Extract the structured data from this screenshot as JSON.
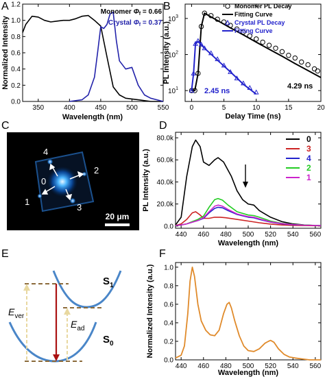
{
  "panels": {
    "A": {
      "letter": "A",
      "ylabel": "Normalized Intensity",
      "xlabel": "Wavelength (nm)",
      "xticks": [
        "350",
        "400",
        "450",
        "500",
        "550"
      ],
      "yticks": [
        "0.0",
        "0.2",
        "0.4",
        "0.6",
        "0.8",
        "1.0",
        "1.2"
      ],
      "legend_monomer_prefix": "Monomer ",
      "legend_monomer_value": " = 0.66",
      "legend_crystal_prefix": "Crystal ",
      "legend_crystal_value": " = 0.37",
      "phi_symbol": "Φ",
      "phi_sub": "f",
      "monomer_color": "#000000",
      "crystal_color": "#2222aa"
    },
    "B": {
      "letter": "B",
      "ylabel": "PL Intensity (a.u.)",
      "xlabel": "Delay Time (ns)",
      "xticks": [
        "0",
        "5",
        "10",
        "15",
        "20"
      ],
      "ytick_base": "10",
      "ytick_exps": [
        "1",
        "2",
        "3"
      ],
      "legend": [
        "Monomer PL Decay",
        "Fitting Curve",
        "Crystal PL Decay",
        "Fitting Curve"
      ],
      "annotation_crystal": "2.45 ns",
      "annotation_monomer": "4.29 ns",
      "crystal_color": "#2222cc"
    },
    "C": {
      "letter": "C",
      "spot_labels": [
        "4",
        "0",
        "2",
        "1",
        "3"
      ],
      "scalebar": "20 μm"
    },
    "D": {
      "letter": "D",
      "ylabel": "PL Intensity (a.u.)",
      "xlabel": "Wavelength (nm)",
      "xticks": [
        "440",
        "460",
        "480",
        "500",
        "520",
        "540",
        "560"
      ],
      "yticks": [
        "0.0",
        "20.0k",
        "40.0k",
        "60.0k",
        "80.0k"
      ],
      "legend": [
        {
          "label": "0",
          "color": "#000000"
        },
        {
          "label": "3",
          "color": "#cc2222"
        },
        {
          "label": "4",
          "color": "#2222cc"
        },
        {
          "label": "2",
          "color": "#22cc22"
        },
        {
          "label": "1",
          "color": "#cc22cc"
        }
      ]
    },
    "E": {
      "letter": "E",
      "s1_main": "S",
      "s1_sub": "1",
      "s0_main": "S",
      "s0_sub": "0",
      "ever_main": "E",
      "ever_sub": "ver",
      "ead_main": "E",
      "ead_sub": "ad",
      "curve_color": "#4a86c8",
      "arrow_up_color": "#e8d8a0",
      "arrow_down_color": "#aa1111",
      "dash_color": "#8b6a3a"
    },
    "F": {
      "letter": "F",
      "ylabel": "Normalized Intensity (a.u.)",
      "xlabel": "Wavelength (nm)",
      "xticks": [
        "440",
        "460",
        "480",
        "500",
        "520",
        "540",
        "560"
      ],
      "yticks": [
        "0.0",
        "0.2",
        "0.4",
        "0.6",
        "0.8",
        "1.0"
      ],
      "line_color": "#e08a2a"
    }
  },
  "chart_data": [
    {
      "panel": "A",
      "type": "line",
      "xlabel": "Wavelength (nm)",
      "ylabel": "Normalized Intensity",
      "xlim": [
        325,
        550
      ],
      "ylim": [
        0,
        1.2
      ],
      "series": [
        {
          "name": "Monomer Φf = 0.66",
          "x": [
            325,
            330,
            340,
            350,
            360,
            370,
            380,
            390,
            400,
            410,
            420,
            430,
            440,
            450,
            460,
            470,
            480,
            490,
            500,
            510,
            520,
            530,
            540,
            550
          ],
          "y": [
            0.85,
            0.95,
            1.05,
            1.04,
            1.0,
            0.98,
            0.99,
            1.0,
            1.0,
            1.02,
            1.05,
            1.06,
            1.0,
            0.93,
            0.55,
            0.18,
            0.08,
            0.04,
            0.03,
            0.02,
            0.01,
            0.0,
            0.0,
            0.0
          ]
        },
        {
          "name": "Crystal Φf = 0.37",
          "x": [
            400,
            420,
            430,
            440,
            445,
            450,
            455,
            460,
            465,
            470,
            475,
            480,
            490,
            500,
            510,
            520,
            530,
            540,
            550
          ],
          "y": [
            0.0,
            0.02,
            0.08,
            0.3,
            0.6,
            0.92,
            0.9,
            0.95,
            1.08,
            1.1,
            0.75,
            0.5,
            0.4,
            0.42,
            0.2,
            0.08,
            0.04,
            0.02,
            0.0
          ]
        }
      ]
    },
    {
      "panel": "B",
      "type": "scatter",
      "xlabel": "Delay Time (ns)",
      "ylabel": "PL Intensity (a.u.)",
      "xlim": [
        -1,
        20
      ],
      "ylim": [
        5,
        2500
      ],
      "yscale": "log",
      "series": [
        {
          "name": "Monomer PL Decay",
          "x": [
            0,
            0.5,
            1,
            1.5,
            2,
            3,
            4,
            5,
            6,
            7,
            8,
            9,
            10,
            11,
            12,
            13,
            14,
            15,
            16,
            17,
            18,
            19,
            19.5
          ],
          "y": [
            10,
            10,
            30,
            600,
            1400,
            1200,
            950,
            800,
            640,
            510,
            420,
            330,
            270,
            220,
            180,
            150,
            120,
            95,
            80,
            62,
            52,
            40,
            35
          ]
        },
        {
          "name": "Fitting Curve",
          "x": [
            0,
            0.5,
            1,
            1.5,
            2,
            4,
            6,
            8,
            10,
            12,
            14,
            16,
            18,
            20
          ],
          "y": [
            10,
            10,
            30,
            600,
            1400,
            880,
            550,
            350,
            220,
            140,
            90,
            56,
            36,
            23
          ]
        },
        {
          "name": "Crystal PL Decay",
          "x": [
            0,
            0.3,
            0.6,
            1,
            1.5,
            2,
            3,
            4,
            5,
            6,
            7,
            8,
            9,
            10
          ],
          "y": [
            10,
            30,
            200,
            240,
            190,
            150,
            110,
            75,
            50,
            33,
            22,
            16,
            12,
            9
          ]
        },
        {
          "name": "Fitting Curve",
          "x": [
            0,
            0.3,
            0.6,
            1,
            2,
            4,
            6,
            8,
            10
          ],
          "y": [
            10,
            30,
            200,
            230,
            150,
            70,
            33,
            15,
            8
          ]
        }
      ]
    },
    {
      "panel": "D",
      "type": "line",
      "xlabel": "Wavelength (nm)",
      "ylabel": "PL Intensity (a.u.)",
      "xlim": [
        435,
        565
      ],
      "ylim": [
        -2000,
        85000
      ],
      "series": [
        {
          "name": "0",
          "x": [
            435,
            440,
            445,
            450,
            453,
            457,
            460,
            465,
            470,
            473,
            478,
            485,
            490,
            495,
            500,
            505,
            510,
            520,
            530,
            540,
            550,
            560,
            565
          ],
          "y": [
            1000,
            8000,
            45000,
            72000,
            78000,
            72000,
            58000,
            55000,
            60000,
            62000,
            58000,
            45000,
            32000,
            24000,
            20000,
            19000,
            14000,
            8000,
            4000,
            2000,
            1000,
            500,
            300
          ]
        },
        {
          "name": "3",
          "x": [
            435,
            440,
            445,
            450,
            453,
            457,
            460,
            465,
            470,
            475,
            480,
            490,
            500,
            510,
            520,
            530,
            540,
            550,
            565
          ],
          "y": [
            500,
            2000,
            6000,
            12000,
            13000,
            10000,
            7000,
            7000,
            8000,
            8000,
            7500,
            6000,
            4500,
            3000,
            1800,
            1000,
            600,
            400,
            200
          ]
        },
        {
          "name": "4",
          "x": [
            435,
            440,
            445,
            450,
            455,
            460,
            465,
            470,
            473,
            477,
            482,
            490,
            500,
            505,
            510,
            520,
            530,
            540,
            550,
            565
          ],
          "y": [
            500,
            1000,
            2000,
            3500,
            5000,
            7000,
            12000,
            16000,
            17000,
            16500,
            14000,
            10500,
            8000,
            7500,
            6000,
            3500,
            2000,
            1200,
            800,
            400
          ]
        },
        {
          "name": "2",
          "x": [
            435,
            440,
            445,
            450,
            455,
            460,
            465,
            470,
            473,
            477,
            482,
            490,
            500,
            505,
            510,
            520,
            530,
            540,
            550,
            565
          ],
          "y": [
            500,
            1000,
            2000,
            4000,
            6000,
            9000,
            17000,
            24000,
            25000,
            23500,
            19000,
            13000,
            10000,
            9500,
            8000,
            4500,
            2500,
            1500,
            900,
            400
          ]
        },
        {
          "name": "1",
          "x": [
            435,
            440,
            445,
            450,
            455,
            460,
            465,
            470,
            473,
            477,
            482,
            490,
            500,
            505,
            510,
            520,
            530,
            540,
            550,
            565
          ],
          "y": [
            500,
            1000,
            2000,
            3500,
            5000,
            7500,
            13000,
            18000,
            19000,
            18000,
            15000,
            11000,
            8500,
            8000,
            6500,
            3800,
            2200,
            1300,
            800,
            400
          ]
        }
      ]
    },
    {
      "panel": "F",
      "type": "line",
      "xlabel": "Wavelength (nm)",
      "ylabel": "Normalized Intensity (a.u.)",
      "xlim": [
        435,
        565
      ],
      "ylim": [
        0,
        1.05
      ],
      "series": [
        {
          "name": "",
          "x": [
            435,
            440,
            443,
            446,
            448,
            450,
            452,
            455,
            458,
            462,
            466,
            470,
            474,
            478,
            481,
            483,
            485,
            488,
            492,
            496,
            500,
            505,
            510,
            515,
            518,
            520,
            523,
            527,
            532,
            537,
            542,
            548,
            555,
            565
          ],
          "y": [
            0.02,
            0.05,
            0.15,
            0.5,
            0.85,
            1.0,
            0.9,
            0.6,
            0.42,
            0.32,
            0.27,
            0.26,
            0.32,
            0.5,
            0.6,
            0.62,
            0.56,
            0.42,
            0.26,
            0.15,
            0.1,
            0.09,
            0.12,
            0.18,
            0.2,
            0.21,
            0.19,
            0.12,
            0.06,
            0.03,
            0.02,
            0.01,
            0.0,
            0.0
          ]
        }
      ]
    }
  ]
}
